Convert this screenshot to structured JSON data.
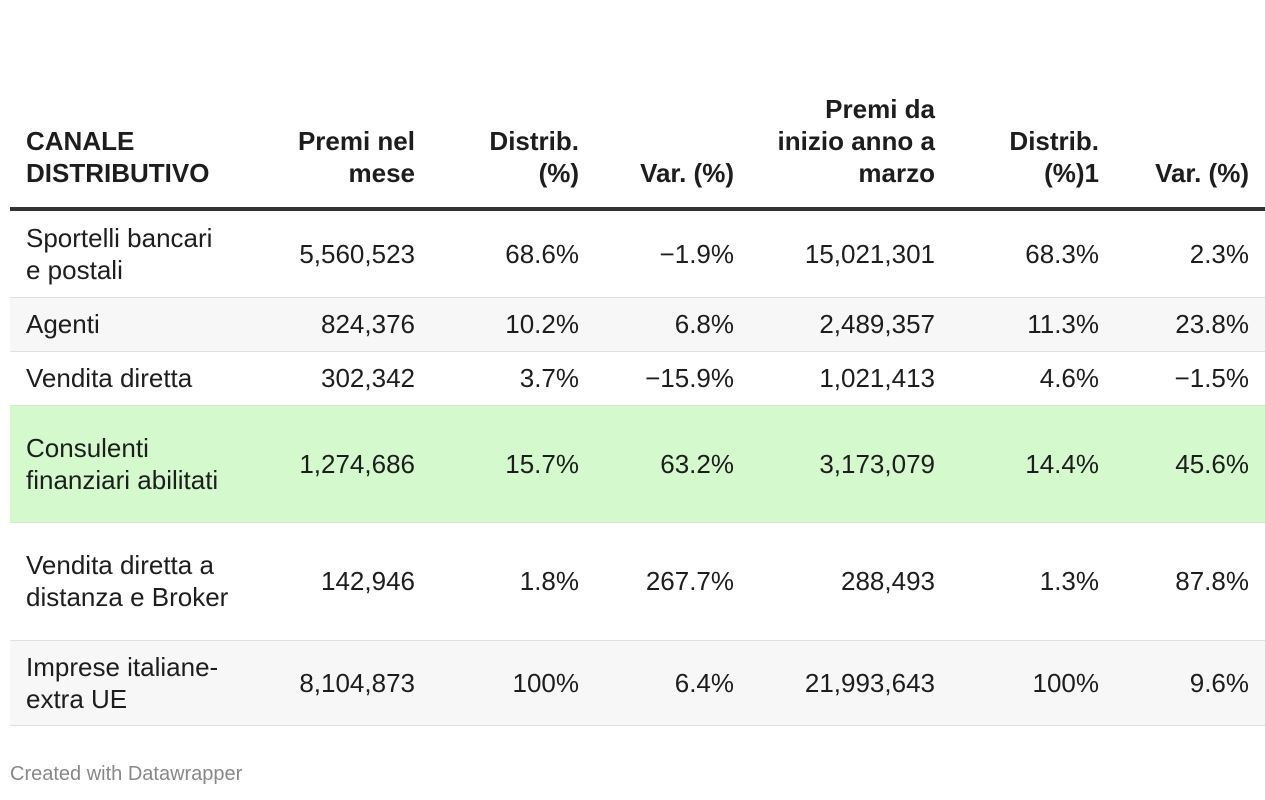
{
  "table": {
    "columns": [
      "CANALE DISTRIBUTIVO",
      "Premi nel mese",
      "Distrib. (%)",
      "Var. (%)",
      "Premi da inizio anno a marzo",
      "Distrib. (%)1",
      "Var. (%)"
    ],
    "rows": [
      [
        "Sportelli bancari e postali",
        "5,560,523",
        "68.6%",
        "−1.9%",
        "15,021,301",
        "68.3%",
        "2.3%"
      ],
      [
        "Agenti",
        "824,376",
        "10.2%",
        "6.8%",
        "2,489,357",
        "11.3%",
        "23.8%"
      ],
      [
        "Vendita diretta",
        "302,342",
        "3.7%",
        "−15.9%",
        "1,021,413",
        "4.6%",
        "−1.5%"
      ],
      [
        "Consulenti finanziari abilitati",
        "1,274,686",
        "15.7%",
        "63.2%",
        "3,173,079",
        "14.4%",
        "45.6%"
      ],
      [
        "Vendita diretta a distanza e Broker",
        "142,946",
        "1.8%",
        "267.7%",
        "288,493",
        "1.3%",
        "87.8%"
      ],
      [
        "Imprese italiane-extra UE",
        "8,104,873",
        "100%",
        "6.4%",
        "21,993,643",
        "100%",
        "9.6%"
      ]
    ],
    "highlighted_row": 3
  },
  "footer": "Created with Datawrapper"
}
